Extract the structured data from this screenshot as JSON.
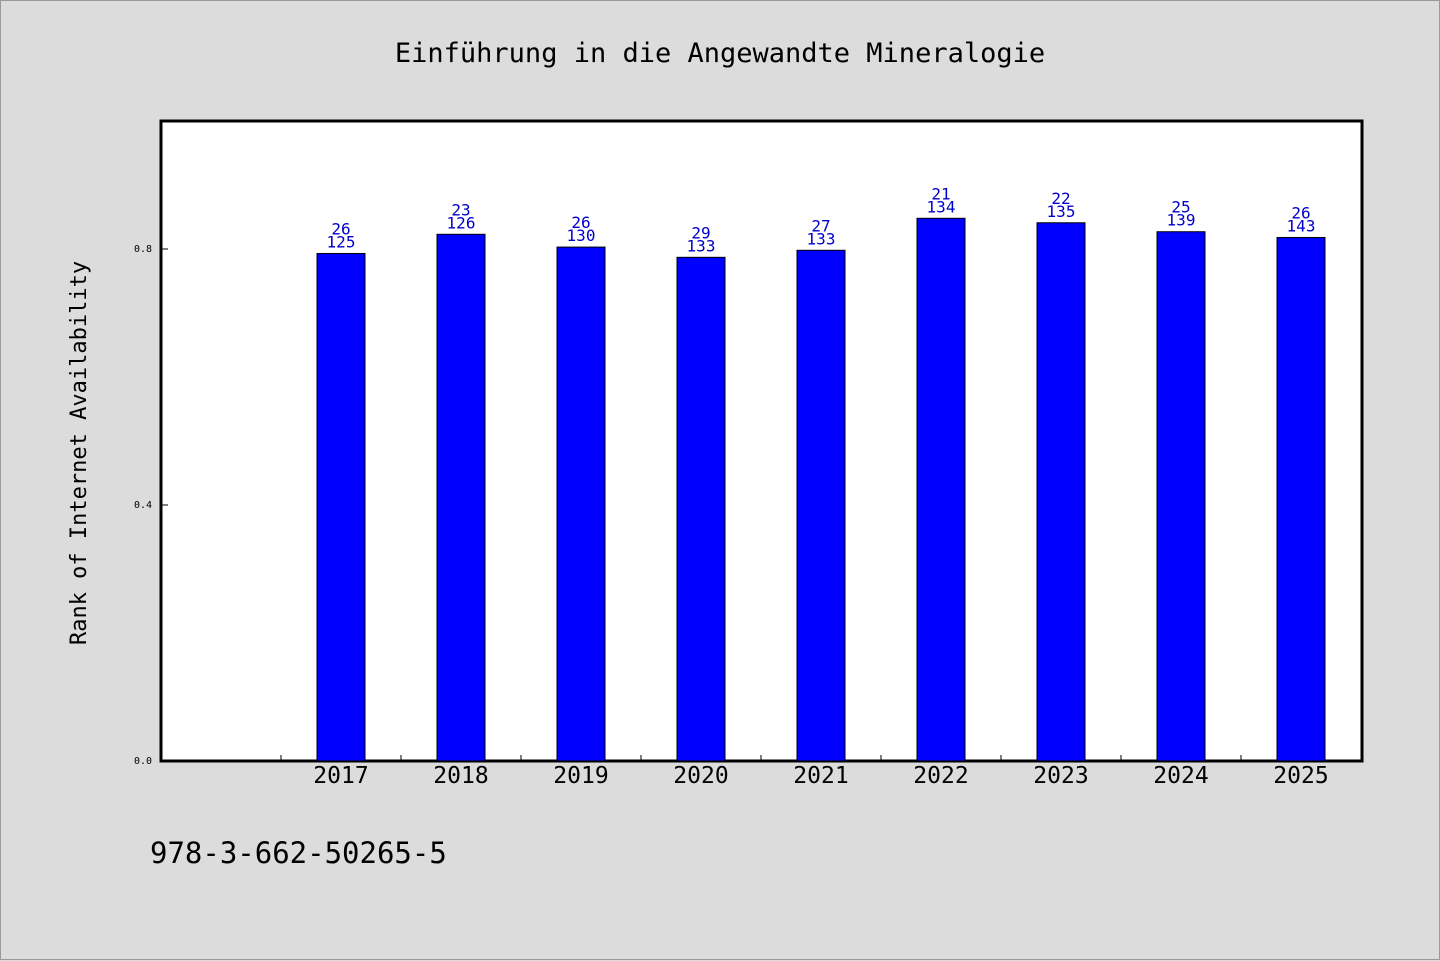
{
  "chart_data": {
    "type": "bar",
    "title": "Einführung in die Angewandte Mineralogie",
    "ylabel": "Rank of Internet Availability",
    "xlabel": "",
    "footer": "978-3-662-50265-5",
    "categories": [
      "2017",
      "2018",
      "2019",
      "2020",
      "2021",
      "2022",
      "2023",
      "2024",
      "2025"
    ],
    "values": [
      0.793,
      0.823,
      0.803,
      0.787,
      0.798,
      0.848,
      0.841,
      0.827,
      0.818
    ],
    "labels_top": [
      "26",
      "23",
      "26",
      "29",
      "27",
      "21",
      "22",
      "25",
      "26"
    ],
    "labels_bottom": [
      "125",
      "126",
      "130",
      "133",
      "133",
      "134",
      "135",
      "139",
      "143"
    ],
    "ylim": [
      0,
      1.0
    ],
    "yticks": [
      0.0,
      0.4,
      0.8
    ],
    "ytick_labels": [
      "0.0",
      "0.4",
      "0.8"
    ],
    "grid": false,
    "legend": "none",
    "bar_color": "#0000ff",
    "label_color": "#0000cc",
    "background_color": "#dcdcdc",
    "plot_background_color": "#ffffff"
  }
}
